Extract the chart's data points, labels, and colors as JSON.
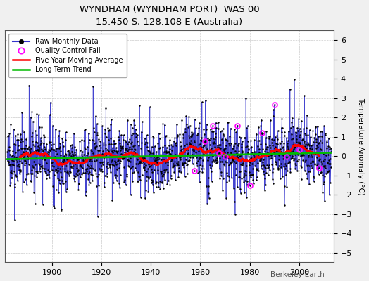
{
  "title": "WYNDHAM (WYNDHAM PORT)  WAS 00",
  "subtitle": "15.450 S, 128.108 E (Australia)",
  "ylabel": "Temperature Anomaly (°C)",
  "credit": "Berkeley Earth",
  "ylim": [
    -5.5,
    6.5
  ],
  "yticks": [
    -5,
    -4,
    -3,
    -2,
    -1,
    0,
    1,
    2,
    3,
    4,
    5,
    6
  ],
  "year_start": 1882,
  "year_end": 2013,
  "raw_color": "#3333cc",
  "raw_stem_color": "#8888dd",
  "moving_avg_color": "#ff0000",
  "trend_color": "#00bb00",
  "qc_color": "#ff00ff",
  "bg_color": "#f0f0f0",
  "plot_bg_color": "#ffffff",
  "legend_entries": [
    "Raw Monthly Data",
    "Quality Control Fail",
    "Five Year Moving Average",
    "Long-Term Trend"
  ],
  "seed": 42
}
